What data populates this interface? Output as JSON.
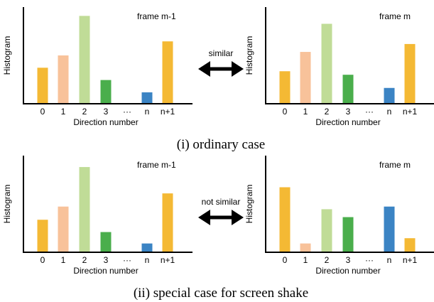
{
  "colors": [
    "#f4b934",
    "#f8c29a",
    "#c0dc97",
    "#4aae4c",
    "#a6c8ea",
    "#3b84c4"
  ],
  "arrow_color": "#000000",
  "cases": [
    {
      "caption": "(i) ordinary case",
      "relation": "similar",
      "charts": [
        {
          "type": "bar",
          "title": "frame m-1",
          "xlabel": "Direction number",
          "ylabel": "Histogram",
          "categories": [
            "0",
            "1",
            "2",
            "3",
            "···",
            "n",
            "n+1"
          ],
          "values": [
            0.41,
            0.55,
            1.0,
            0.27,
            null,
            0.13,
            0.71
          ],
          "ylim": [
            0,
            1.1
          ]
        },
        {
          "type": "bar",
          "title": "frame m",
          "xlabel": "Direction number",
          "ylabel": "Histogram",
          "categories": [
            "0",
            "1",
            "2",
            "3",
            "···",
            "n",
            "n+1"
          ],
          "values": [
            0.37,
            0.59,
            0.91,
            0.33,
            null,
            0.18,
            0.68
          ],
          "ylim": [
            0,
            1.1
          ]
        }
      ]
    },
    {
      "caption": "(ii) special case for screen shake",
      "relation": "not similar",
      "charts": [
        {
          "type": "bar",
          "title": "frame m-1",
          "xlabel": "Direction number",
          "ylabel": "Histogram",
          "categories": [
            "0",
            "1",
            "2",
            "3",
            "···",
            "n",
            "n+1"
          ],
          "values": [
            0.37,
            0.52,
            0.97,
            0.23,
            null,
            0.1,
            0.67
          ],
          "ylim": [
            0,
            1.1
          ]
        },
        {
          "type": "bar",
          "title": "frame m",
          "xlabel": "Direction number",
          "ylabel": "Histogram",
          "categories": [
            "0",
            "1",
            "2",
            "3",
            "···",
            "n",
            "n+1"
          ],
          "values": [
            0.74,
            0.1,
            0.49,
            0.4,
            null,
            0.52,
            0.16
          ],
          "ylim": [
            0,
            1.1
          ]
        }
      ]
    }
  ]
}
